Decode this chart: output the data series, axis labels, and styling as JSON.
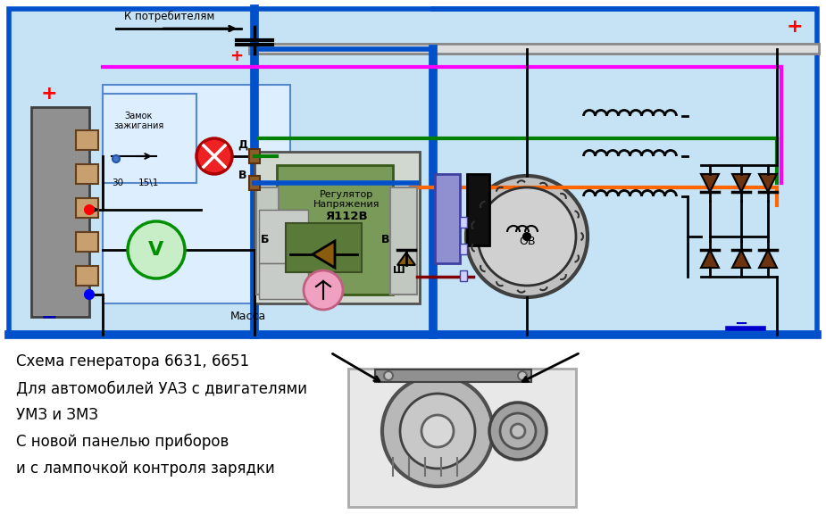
{
  "bg_color": "#ffffff",
  "diagram_bg": "#c8e8f8",
  "title_lines": [
    "Схема генератора 6631, 6651",
    "Для автомобилей УАЗ с двигателями",
    "УМЗ и ЗМЗ",
    "С новой панелью приборов",
    "и с лампочкой контроля зарядки"
  ],
  "border_color": "#0050cc",
  "blue_wire": "#0050cc",
  "pink_wire": "#ff00ff",
  "green_wire": "#008000",
  "orange_wire": "#ff6600",
  "dark_red_wire": "#800000",
  "gray_bus": "#888888",
  "brown_diode": "#6b3310"
}
